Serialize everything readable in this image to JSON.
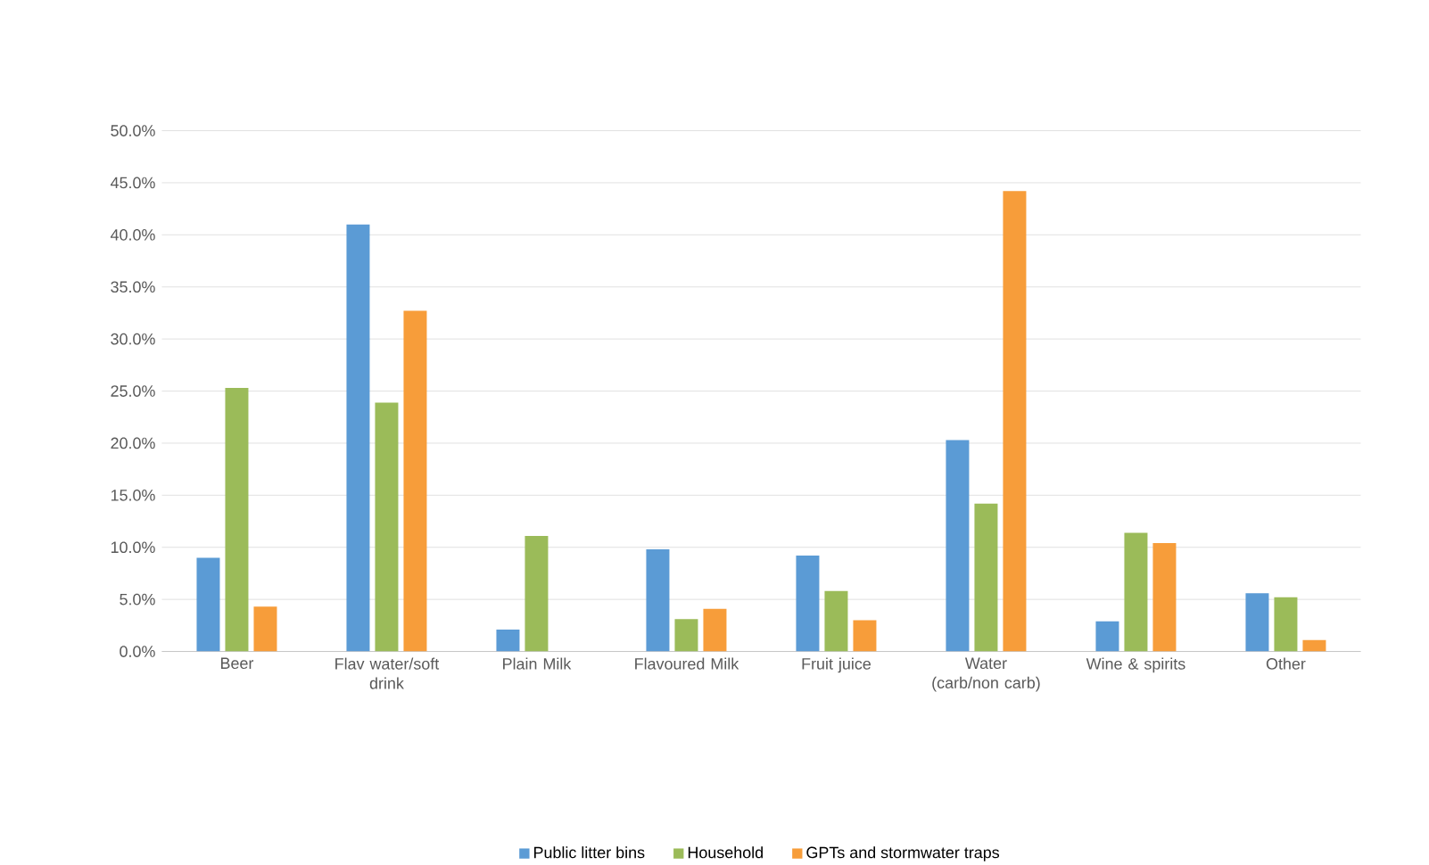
{
  "chart_data": {
    "type": "bar",
    "categories": [
      "Beer",
      "Flav water/soft drink",
      "Plain Milk",
      "Flavoured Milk",
      "Fruit juice",
      "Water (carb/non carb)",
      "Wine & spirits",
      "Other"
    ],
    "series": [
      {
        "name": "Public litter bins",
        "color": "#5b9bd5",
        "values": [
          9.0,
          41.0,
          2.1,
          9.8,
          9.2,
          20.3,
          2.9,
          5.6
        ]
      },
      {
        "name": "Household",
        "color": "#9bbb59",
        "values": [
          25.3,
          23.9,
          11.1,
          3.1,
          5.8,
          14.2,
          11.4,
          5.2
        ]
      },
      {
        "name": "GPTs and stormwater traps",
        "color": "#f79d3a",
        "values": [
          4.3,
          32.7,
          null,
          4.1,
          3.0,
          44.2,
          10.4,
          1.1
        ]
      }
    ],
    "ylim": [
      0,
      50
    ],
    "yticks": [
      {
        "value": 0,
        "label": "0.0%"
      },
      {
        "value": 5,
        "label": "5.0%"
      },
      {
        "value": 10,
        "label": "10.0%"
      },
      {
        "value": 15,
        "label": "15.0%"
      },
      {
        "value": 20,
        "label": "20.0%"
      },
      {
        "value": 25,
        "label": "25.0%"
      },
      {
        "value": 30,
        "label": "30.0%"
      },
      {
        "value": 35,
        "label": "35.0%"
      },
      {
        "value": 40,
        "label": "40.0%"
      },
      {
        "value": 45,
        "label": "45.0%"
      },
      {
        "value": 50,
        "label": "50.0%"
      }
    ],
    "grid": "y",
    "legend": "bottom"
  }
}
